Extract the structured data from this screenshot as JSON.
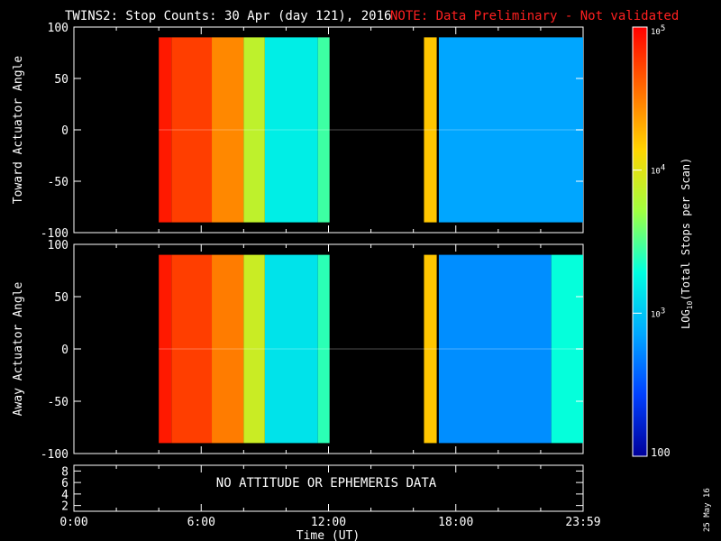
{
  "title": "TWINS2: Stop Counts: 30 Apr (day 121), 2016",
  "note": "NOTE: Data Preliminary - Not validated",
  "note_color": "#ff2020",
  "date_stamp": "25 May 16",
  "status_message": "NO ATTITUDE OR EPHEMERIS DATA",
  "xlabel": "Time (UT)",
  "x_ticks": [
    "0:00",
    "6:00",
    "12:00",
    "18:00",
    "23:59"
  ],
  "colorbar": {
    "label": "LOG10(Total Stops per Scan)",
    "label_main": "LOG",
    "label_sub": "10",
    "label_tail": "(Total Stops per Scan)",
    "tick_labels": [
      {
        "base": "10",
        "exp": "5",
        "value": 100000
      },
      {
        "base": "10",
        "exp": "4",
        "value": 10000
      },
      {
        "base": "10",
        "exp": "3",
        "value": 1000
      },
      {
        "base": "",
        "exp": "",
        "value": 100,
        "text": "100"
      }
    ],
    "colors": [
      "#ff0000",
      "#ff6a00",
      "#ffd400",
      "#a0ff40",
      "#00ffe0",
      "#00a8ff",
      "#0040ff",
      "#00009a"
    ]
  },
  "chart_data": [
    {
      "type": "heatmap",
      "panel": "top",
      "ylabel": "Toward Actuator Angle",
      "y_ticks": [
        "100",
        "50",
        "0",
        "-50",
        "-100"
      ],
      "ylim": [
        -100,
        100
      ],
      "xlim": [
        0,
        24
      ],
      "color_scale": "log",
      "value_range": [
        100,
        100000
      ],
      "data_coverage_hours": [
        [
          4.0,
          12.05
        ],
        [
          16.5,
          17.1
        ],
        [
          17.2,
          24.0
        ]
      ],
      "data_angle_range": [
        -90,
        90
      ],
      "columns": [
        {
          "t0": 4.0,
          "t1": 4.6,
          "log10": 4.9
        },
        {
          "t0": 4.6,
          "t1": 6.5,
          "log10": 4.75
        },
        {
          "t0": 6.5,
          "t1": 8.0,
          "log10": 4.45
        },
        {
          "t0": 8.0,
          "t1": 9.0,
          "log10": 3.85
        },
        {
          "t0": 9.0,
          "t1": 11.5,
          "log10": 3.2
        },
        {
          "t0": 11.5,
          "t1": 12.05,
          "log10": 3.45
        },
        {
          "t0": 16.5,
          "t1": 17.1,
          "log10": 4.2
        },
        {
          "t0": 17.2,
          "t1": 24.0,
          "log10": 2.85
        }
      ]
    },
    {
      "type": "heatmap",
      "panel": "middle",
      "ylabel": "Away Actuator Angle",
      "y_ticks": [
        "100",
        "50",
        "0",
        "-50",
        "-100"
      ],
      "ylim": [
        -100,
        100
      ],
      "xlim": [
        0,
        24
      ],
      "color_scale": "log",
      "value_range": [
        100,
        100000
      ],
      "data_coverage_hours": [
        [
          4.0,
          12.05
        ],
        [
          16.5,
          17.1
        ],
        [
          17.2,
          24.0
        ]
      ],
      "data_angle_range": [
        -90,
        90
      ],
      "columns": [
        {
          "t0": 4.0,
          "t1": 4.6,
          "log10": 4.9
        },
        {
          "t0": 4.6,
          "t1": 6.5,
          "log10": 4.75
        },
        {
          "t0": 6.5,
          "t1": 8.0,
          "log10": 4.5
        },
        {
          "t0": 8.0,
          "t1": 9.0,
          "log10": 3.9
        },
        {
          "t0": 9.0,
          "t1": 11.5,
          "log10": 3.15
        },
        {
          "t0": 11.5,
          "t1": 12.05,
          "log10": 3.4
        },
        {
          "t0": 16.5,
          "t1": 17.1,
          "log10": 4.2
        },
        {
          "t0": 17.2,
          "t1": 22.5,
          "log10": 2.75
        },
        {
          "t0": 22.5,
          "t1": 24.0,
          "log10": 3.3
        }
      ]
    },
    {
      "type": "line",
      "panel": "bottom",
      "y_ticks": [
        "8",
        "6",
        "4",
        "2"
      ],
      "ylim": [
        1,
        9
      ],
      "xlim": [
        0,
        24
      ]
    }
  ]
}
